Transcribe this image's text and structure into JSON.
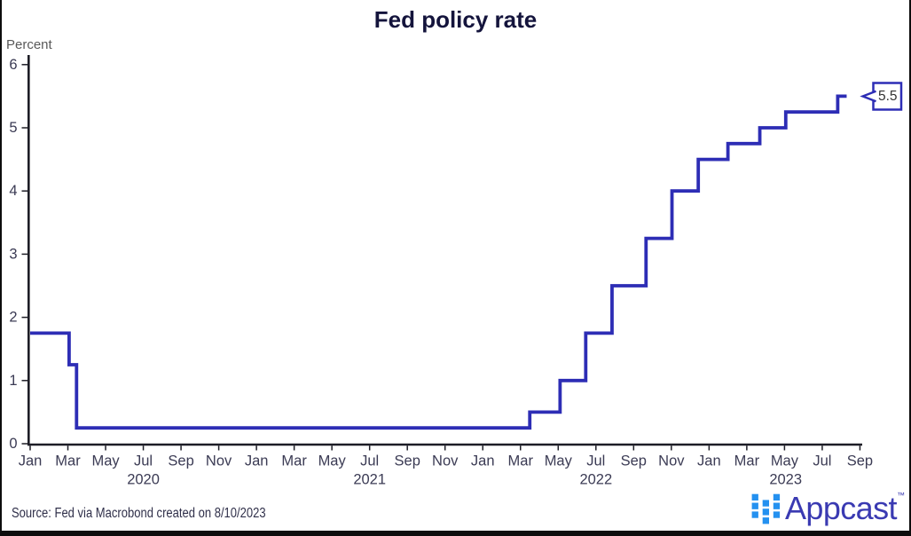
{
  "title": "Fed policy rate",
  "y_axis_title": "Percent",
  "source_note": "Source: Fed via Macrobond created on 8/10/2023",
  "annotation": {
    "label": "5.5"
  },
  "logo": {
    "text": "Appcast",
    "tm": "™"
  },
  "colors": {
    "line": "#2d2db5",
    "title": "#14143c",
    "tick_label": "#3b3b54",
    "axis": "#1d1d26",
    "annotation_text": "#333333",
    "source": "#30304a",
    "logo_squares": "#2491f0",
    "logo_text": "#3a3ab2",
    "frame": "#0d0d0d"
  },
  "chart_data": {
    "type": "line",
    "step": true,
    "title": "Fed policy rate",
    "ylabel": "Percent",
    "ylim": [
      0,
      6
    ],
    "y_ticks": [
      0,
      1,
      2,
      3,
      4,
      5,
      6
    ],
    "x_start": "2020-01",
    "x_end": "2023-09",
    "x_month_labels": [
      "Jan",
      "Mar",
      "May",
      "Jul",
      "Sep",
      "Nov"
    ],
    "x_year_labels": [
      "2020",
      "2021",
      "2022",
      "2023"
    ],
    "grid": false,
    "legend": false,
    "series": [
      {
        "name": "Fed policy rate",
        "unit": "Percent",
        "points": [
          [
            "2020-01-01",
            1.75
          ],
          [
            "2020-03-03",
            1.25
          ],
          [
            "2020-03-15",
            0.25
          ],
          [
            "2022-03-16",
            0.5
          ],
          [
            "2022-05-04",
            1.0
          ],
          [
            "2022-06-15",
            1.75
          ],
          [
            "2022-07-27",
            2.5
          ],
          [
            "2022-09-21",
            3.25
          ],
          [
            "2022-11-02",
            4.0
          ],
          [
            "2022-12-14",
            4.5
          ],
          [
            "2023-02-01",
            4.75
          ],
          [
            "2023-03-22",
            5.0
          ],
          [
            "2023-05-03",
            5.25
          ],
          [
            "2023-07-26",
            5.5
          ]
        ],
        "end_date": "2023-08-10",
        "end_value": 5.5
      }
    ]
  }
}
